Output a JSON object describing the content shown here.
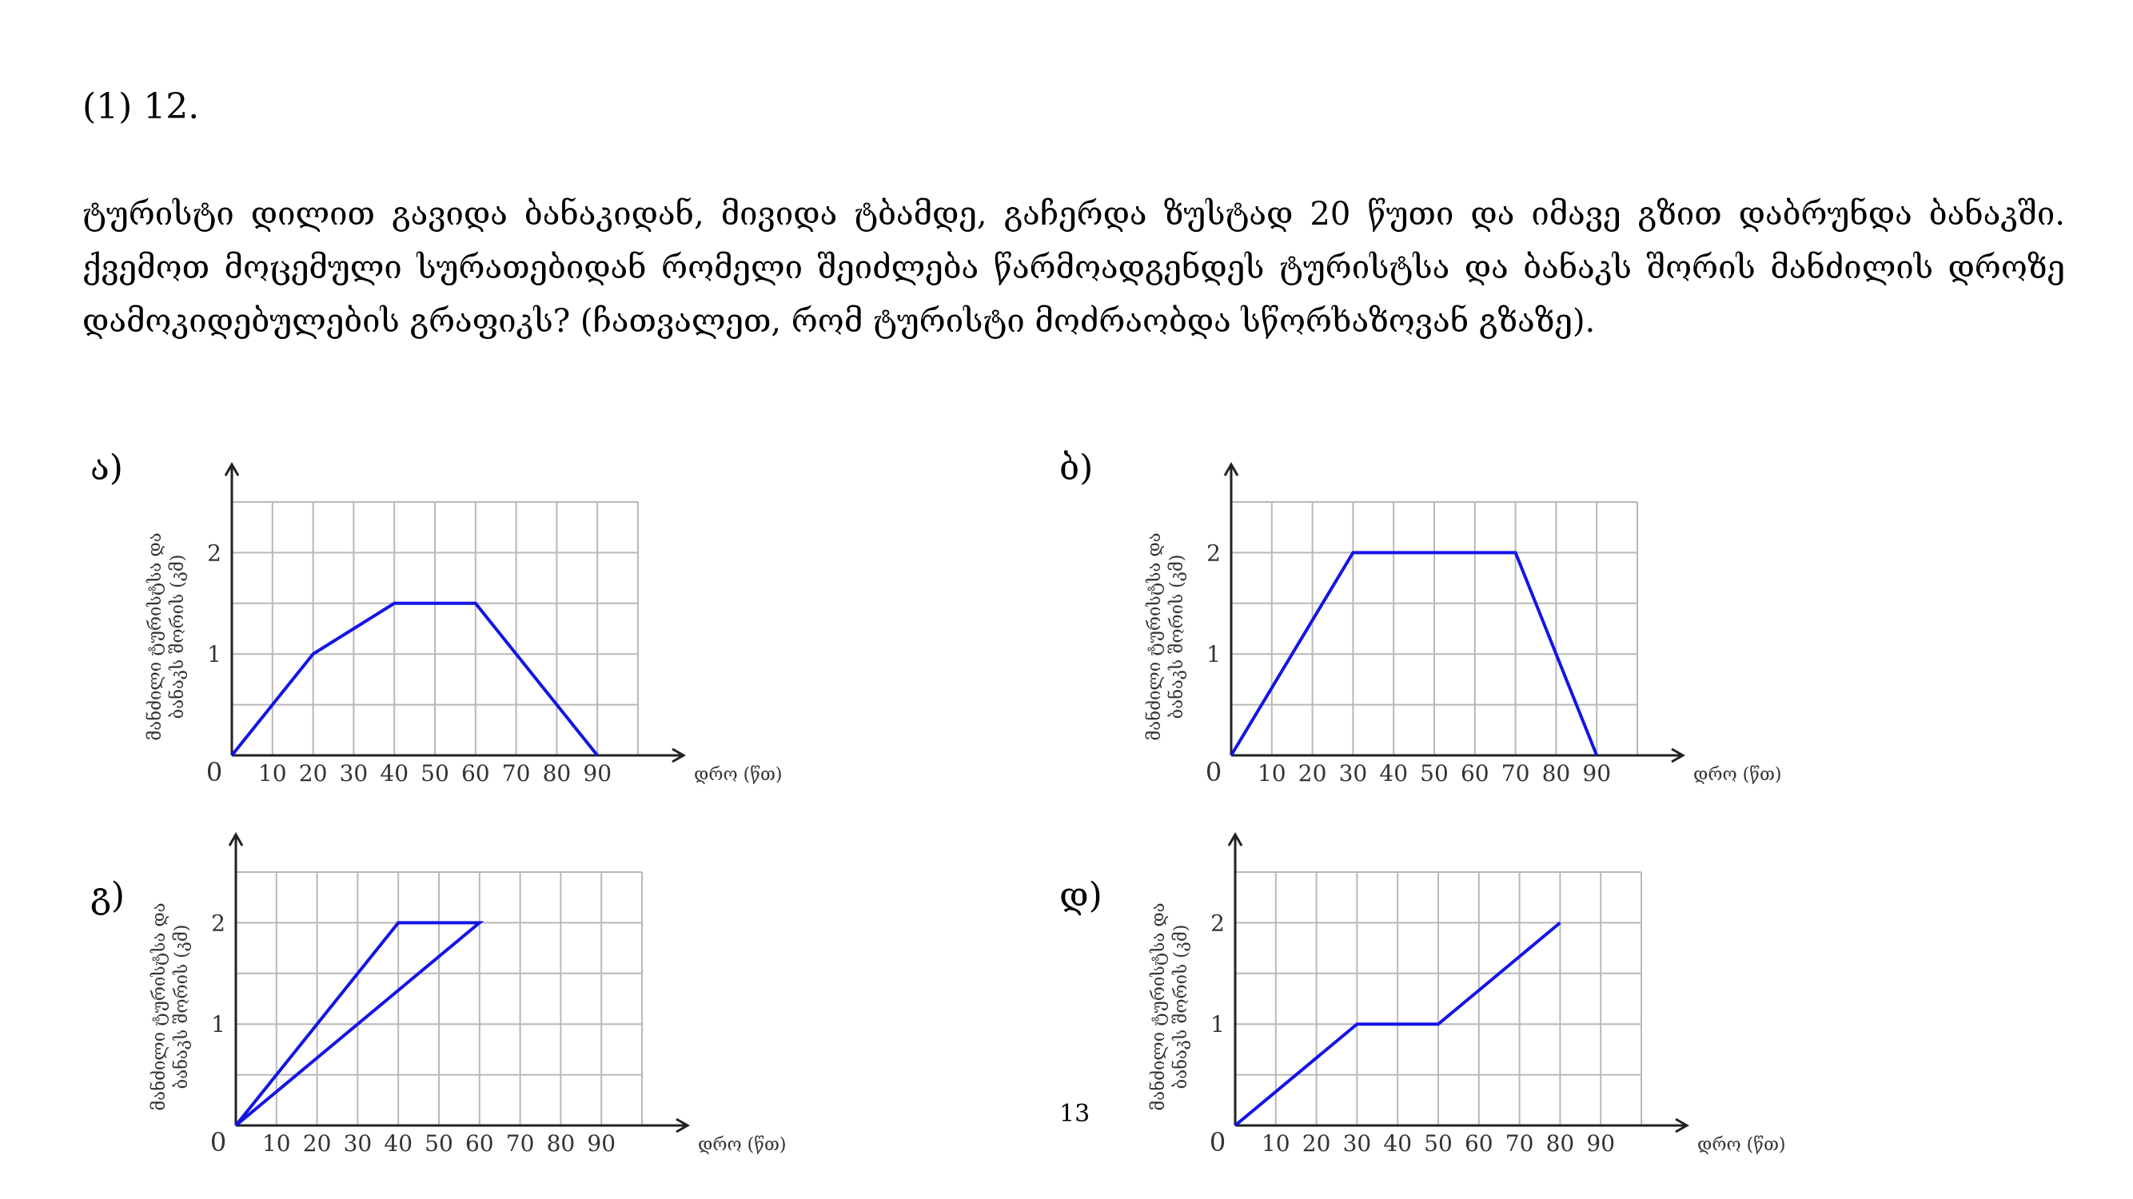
{
  "question": {
    "number": "(1) 12.",
    "text": "ტურისტი დილით გავიდა ბანაკიდან, მივიდა ტბამდე, გაჩერდა ზუსტად 20 წუთი და იმავე გზით დაბრუნდა ბანაკში. ქვემოთ მოცემული სურათებიდან რომელი შეიძლება წარმოადგენდეს ტურისტსა და ბანაკს შორის მანძილის დროზე დამოკიდებულების გრაფიკს? (ჩათვალეთ, რომ ტურისტი მოძრაობდა სწორხაზოვან გზაზე)."
  },
  "page_number": "13",
  "axes": {
    "ylabel_line1": "მანძილი ტურისტსა და",
    "ylabel_line2": "ბანაკს შორის (კმ)",
    "xlabel": "დრო (წთ)",
    "origin_label": "0",
    "x_ticks": [
      "10",
      "20",
      "30",
      "40",
      "50",
      "60",
      "70",
      "80",
      "90"
    ],
    "y_ticks": [
      "1",
      "2"
    ]
  },
  "chart_data": [
    {
      "type": "line",
      "panel": "ა)",
      "xlabel": "დრო (წთ)",
      "ylabel": "მანძილი ტურისტსა და ბანაკს შორის (კმ)",
      "xlim": [
        0,
        100
      ],
      "ylim": [
        0,
        2.5
      ],
      "grid": true,
      "x": [
        0,
        20,
        40,
        60,
        90
      ],
      "y": [
        0,
        1,
        1.5,
        1.5,
        0
      ]
    },
    {
      "type": "line",
      "panel": "ბ)",
      "xlabel": "დრო (წთ)",
      "ylabel": "მანძილი ტურისტსა და ბანაკს შორის (კმ)",
      "xlim": [
        0,
        100
      ],
      "ylim": [
        0,
        2.5
      ],
      "grid": true,
      "x": [
        0,
        30,
        70,
        90
      ],
      "y": [
        0,
        2,
        2,
        0
      ]
    },
    {
      "type": "line",
      "panel": "გ)",
      "xlabel": "დრო (წთ)",
      "ylabel": "მანძილი ტურისტსა და ბანაკს შორის (კმ)",
      "xlim": [
        0,
        100
      ],
      "ylim": [
        0,
        2.5
      ],
      "grid": true,
      "x": [
        0,
        40,
        60,
        0
      ],
      "y": [
        0,
        2,
        2,
        0
      ]
    },
    {
      "type": "line",
      "panel": "დ)",
      "xlabel": "დრო (წთ)",
      "ylabel": "მანძილი ტურისტსა და ბანაკს შორის (კმ)",
      "xlim": [
        0,
        100
      ],
      "ylim": [
        0,
        2.5
      ],
      "grid": true,
      "x": [
        0,
        30,
        50,
        80
      ],
      "y": [
        0,
        1,
        1,
        2
      ]
    }
  ]
}
